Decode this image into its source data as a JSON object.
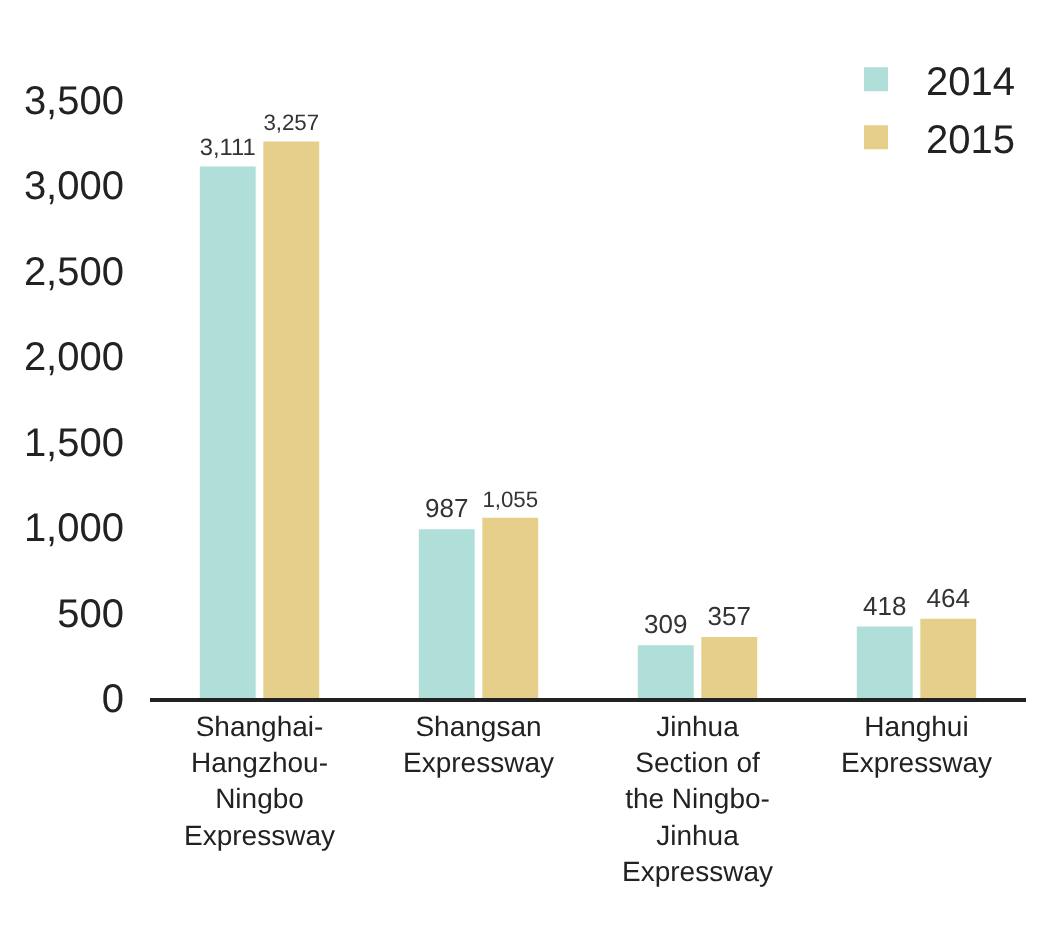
{
  "chart_data": {
    "type": "bar",
    "categories": [
      "Shanghai-Hangzhou-Ningbo Expressway",
      "Shangsan Expressway",
      "Jinhua Section of the Ningbo-Jinhua Expressway",
      "Hanghui Expressway"
    ],
    "series": [
      {
        "name": "2014",
        "color": "#b0ded9",
        "values": [
          3111,
          987,
          309,
          418
        ],
        "value_labels": [
          "3,111",
          "987",
          "309",
          "418"
        ]
      },
      {
        "name": "2015",
        "color": "#e6cf8b",
        "values": [
          3257,
          1055,
          357,
          464
        ],
        "value_labels": [
          "3,257",
          "1,055",
          "357",
          "464"
        ]
      }
    ],
    "ylim": [
      0,
      3500
    ],
    "yticks": [
      0,
      {
        "value": 500,
        "label": "500"
      },
      {
        "value": 1000,
        "label": "1,000"
      },
      {
        "value": 1500,
        "label": "1,500"
      },
      {
        "value": 2000,
        "label": "2,000"
      },
      {
        "value": 2500,
        "label": "2,500"
      },
      {
        "value": 3000,
        "label": "3,000"
      },
      {
        "value": 3500,
        "label": "3,500"
      }
    ],
    "grid": false,
    "legend": "top right"
  }
}
